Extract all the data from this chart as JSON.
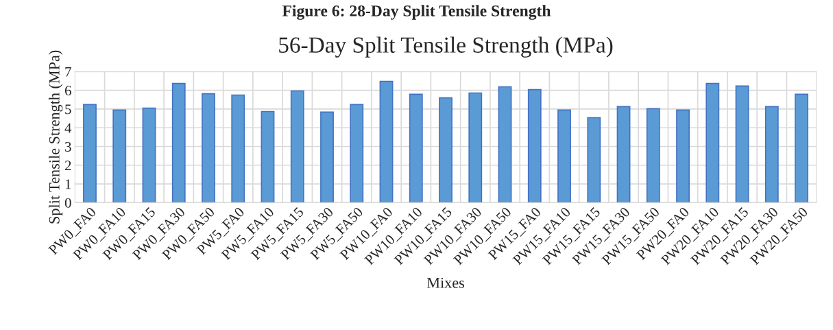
{
  "chart_data": {
    "type": "bar",
    "title": "56-Day Split Tensile Strength (MPa)",
    "xlabel": "Mixes",
    "ylabel": "Split Tensile Strength (MPa)",
    "annotations": [
      "Figure 6: 28-Day Split Tensile Strength"
    ],
    "categories": [
      "PW0_FA0",
      "PW0_FA10",
      "PW0_FA15",
      "PW0_FA30",
      "PW0_FA50",
      "PW5_FA0",
      "PW5_FA10",
      "PW5_FA15",
      "PW5_FA30",
      "PW5_FA50",
      "PW10_FA0",
      "PW10_FA10",
      "PW10_FA15",
      "PW10_FA30",
      "PW10_FA50",
      "PW15_FA0",
      "PW15_FA10",
      "PW15_FA15",
      "PW15_FA30",
      "PW15_FA50",
      "PW20_FA0",
      "PW20_FA10",
      "PW20_FA15",
      "PW20_FA30",
      "PW20_FA50"
    ],
    "values": [
      5.24,
      4.95,
      5.05,
      6.37,
      5.82,
      5.75,
      4.87,
      5.97,
      4.84,
      5.24,
      6.48,
      5.79,
      5.6,
      5.86,
      6.19,
      6.04,
      4.95,
      4.54,
      5.13,
      5.02,
      4.95,
      6.37,
      6.23,
      5.13,
      5.79
    ],
    "color": "#5b9bd5",
    "ylim": [
      0,
      7
    ],
    "yticks": [
      0,
      1,
      2,
      3,
      4,
      5,
      6,
      7
    ],
    "grid": true,
    "legend": false
  }
}
